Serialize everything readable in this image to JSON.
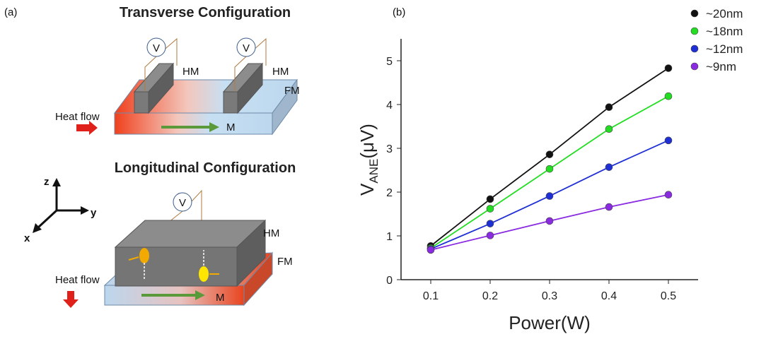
{
  "diagram": {
    "panel_label": "(a)",
    "top": {
      "title": "Transverse Configuration",
      "voltmeter_1": "V",
      "voltmeter_2": "V",
      "hm_1": "HM",
      "hm_2": "HM",
      "fm": "FM",
      "heat_flow": "Heat flow",
      "magnetization": "M"
    },
    "axes": {
      "z": "z",
      "y": "y",
      "x": "x"
    },
    "bottom": {
      "title": "Longitudinal Configuration",
      "voltmeter": "V",
      "hm": "HM",
      "fm": "FM",
      "heat_flow": "Heat flow",
      "magnetization": "M"
    }
  },
  "chart_data": {
    "type": "line",
    "panel_label": "(b)",
    "xlabel": "Power(W)",
    "ylabel": "V",
    "ylabel_sub": "ANE",
    "ylabel_unit": "(μV)",
    "x": [
      0.1,
      0.2,
      0.3,
      0.4,
      0.5
    ],
    "series": [
      {
        "name": "~20nm",
        "color": "#111111",
        "values": [
          0.77,
          1.84,
          2.86,
          3.94,
          4.83
        ]
      },
      {
        "name": "~18nm",
        "color": "#22dd22",
        "values": [
          0.72,
          1.62,
          2.53,
          3.44,
          4.19
        ]
      },
      {
        "name": "~12nm",
        "color": "#1f2fd6",
        "values": [
          0.7,
          1.28,
          1.91,
          2.57,
          3.18
        ]
      },
      {
        "name": "~9nm",
        "color": "#8a2be2",
        "values": [
          0.68,
          1.01,
          1.34,
          1.66,
          1.94
        ]
      }
    ],
    "xlim": [
      0.05,
      0.55
    ],
    "xticks": [
      0.1,
      0.2,
      0.3,
      0.4,
      0.5
    ],
    "ylim": [
      0,
      5.5
    ],
    "yticks": [
      0,
      1,
      2,
      3,
      4,
      5
    ],
    "grid": false,
    "legend": "upper right"
  }
}
